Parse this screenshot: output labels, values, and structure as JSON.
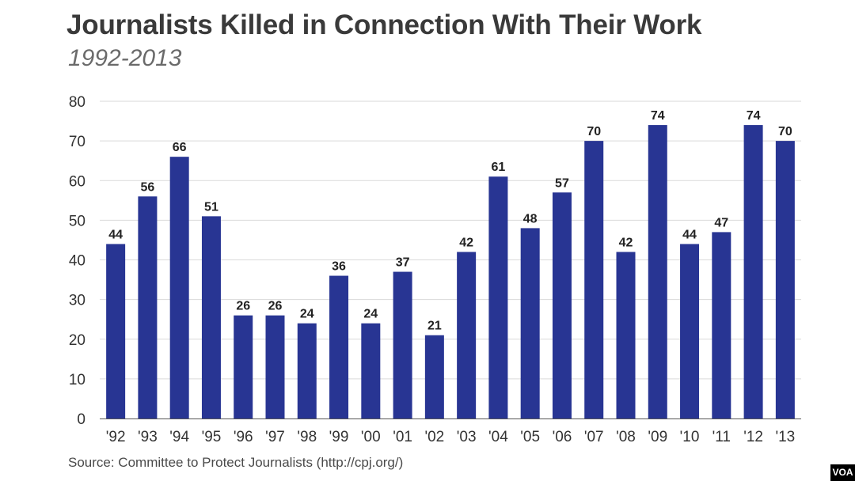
{
  "title": "Journalists Killed in Connection With Their Work",
  "subtitle": "1992-2013",
  "source": "Source: Committee to Protect Journalists (http://cpj.org/)",
  "logo_text": "VOA",
  "colors": {
    "bar": "#283593",
    "grid": "#d9d9d9",
    "axis": "#555555",
    "title": "#3a3a3a",
    "subtitle": "#6a6a6a"
  },
  "chart_data": {
    "type": "bar",
    "title": "Journalists Killed in Connection With Their Work",
    "subtitle": "1992-2013",
    "xlabel": "",
    "ylabel": "",
    "ylim": [
      0,
      80
    ],
    "yticks": [
      0,
      10,
      20,
      30,
      40,
      50,
      60,
      70,
      80
    ],
    "grid": true,
    "legend": "none",
    "categories": [
      "'92",
      "'93",
      "'94",
      "'95",
      "'96",
      "'97",
      "'98",
      "'99",
      "'00",
      "'01",
      "'02",
      "'03",
      "'04",
      "'05",
      "'06",
      "'07",
      "'08",
      "'09",
      "'10",
      "'11",
      "'12",
      "'13"
    ],
    "values": [
      44,
      56,
      66,
      51,
      26,
      26,
      24,
      36,
      24,
      37,
      21,
      42,
      61,
      48,
      57,
      70,
      42,
      74,
      44,
      47,
      74,
      70
    ],
    "data_labels": true
  }
}
